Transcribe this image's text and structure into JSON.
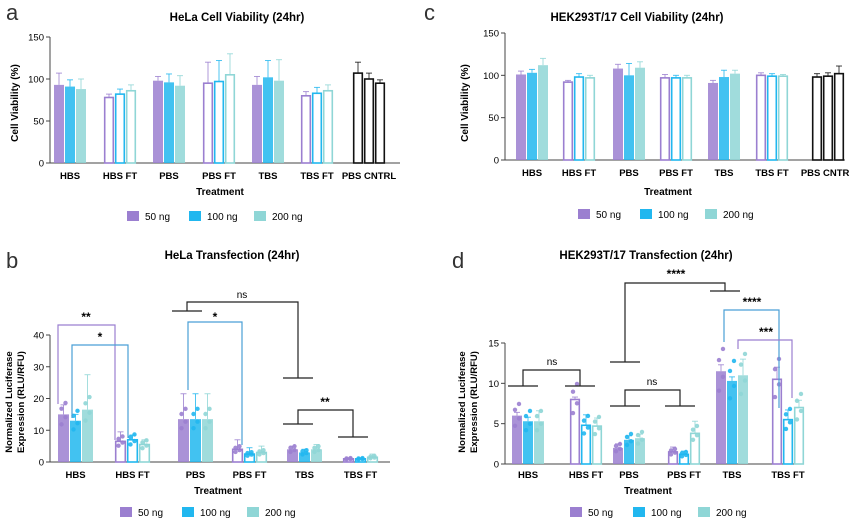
{
  "colors": {
    "s50": "#9b7fd0",
    "s100": "#21b7ef",
    "s200": "#8fd6d6",
    "pbscntrl": "#111111",
    "bracket": "#222222",
    "bracket_purple": "#9b7fd0",
    "bracket_blue": "#4a9fd6"
  },
  "panels": [
    {
      "letter": "a",
      "title": "HeLa Cell Viability (24hr)",
      "ylabel": "Cell Viability (%)",
      "xlabel": "Treatment"
    },
    {
      "letter": "c",
      "title": "HEK293T/17 Cell Viability (24hr)",
      "ylabel": "Cell Viability (%)",
      "xlabel": "Treatment"
    },
    {
      "letter": "b",
      "title": "HeLa Transfection (24hr)",
      "ylabel_line1": "Normalized Luciferase",
      "ylabel_line2": "Expression (RLU/RFU)",
      "xlabel": "Treatment"
    },
    {
      "letter": "d",
      "title": "HEK293T/17 Transfection (24hr)",
      "ylabel_line1": "Normalized Luciferase",
      "ylabel_line2": "Expression (RLU/RFU)",
      "xlabel": "Treatment"
    }
  ],
  "legend": [
    "50 ng",
    "100 ng",
    "200 ng"
  ],
  "chart_data": [
    {
      "type": "bar",
      "panel": "a",
      "title": "HeLa Cell Viability (24hr)",
      "xlabel": "Treatment",
      "ylabel": "Cell Viability (%)",
      "ylim": [
        0,
        150
      ],
      "yticks": [
        0,
        50,
        100,
        150
      ],
      "categories": [
        "HBS",
        "HBS FT",
        "PBS",
        "PBS FT",
        "TBS",
        "TBS FT",
        "PBS CNTRL"
      ],
      "series": [
        {
          "name": "50 ng",
          "values": [
            93,
            78,
            98,
            95,
            93,
            80,
            null
          ]
        },
        {
          "name": "100 ng",
          "values": [
            91,
            82,
            96,
            97,
            102,
            83,
            null
          ]
        },
        {
          "name": "200 ng",
          "values": [
            88,
            86,
            92,
            105,
            98,
            86,
            null
          ]
        }
      ],
      "control": {
        "category": "PBS CNTRL",
        "values": [
          107,
          100,
          95
        ]
      },
      "errors": {
        "50 ng": [
          14,
          4,
          5,
          25,
          10,
          5
        ],
        "100 ng": [
          8,
          6,
          10,
          25,
          20,
          7
        ],
        "200 ng": [
          12,
          7,
          12,
          25,
          25,
          7
        ],
        "control": [
          13,
          7,
          4
        ]
      }
    },
    {
      "type": "bar",
      "panel": "c",
      "title": "HEK293T/17 Cell Viability (24hr)",
      "xlabel": "Treatment",
      "ylabel": "Cell Viability (%)",
      "ylim": [
        0,
        150
      ],
      "yticks": [
        0,
        50,
        100,
        150
      ],
      "categories": [
        "HBS",
        "HBS FT",
        "PBS",
        "PBS FT",
        "TBS",
        "TBS FT",
        "PBS CNTRL"
      ],
      "series": [
        {
          "name": "50 ng",
          "values": [
            101,
            92,
            108,
            97,
            91,
            100,
            null
          ]
        },
        {
          "name": "100 ng",
          "values": [
            103,
            98,
            100,
            97,
            98,
            99,
            null
          ]
        },
        {
          "name": "200 ng",
          "values": [
            112,
            97,
            109,
            97,
            102,
            99,
            null
          ]
        }
      ],
      "control": {
        "category": "PBS CNTRL",
        "values": [
          98,
          99,
          102
        ]
      },
      "errors": {
        "50 ng": [
          4,
          2,
          5,
          4,
          3,
          3
        ],
        "100 ng": [
          4,
          4,
          14,
          3,
          8,
          3
        ],
        "200 ng": [
          8,
          3,
          7,
          3,
          4,
          2
        ],
        "control": [
          4,
          4,
          9
        ]
      }
    },
    {
      "type": "bar",
      "panel": "b",
      "title": "HeLa Transfection (24hr)",
      "xlabel": "Treatment",
      "ylabel": "Normalized Luciferase Expression (RLU/RFU)",
      "ylim": [
        0,
        40
      ],
      "yticks": [
        0,
        10,
        20,
        30,
        40
      ],
      "categories": [
        "HBS",
        "HBS FT",
        "PBS",
        "PBS FT",
        "TBS",
        "TBS FT"
      ],
      "series": [
        {
          "name": "50 ng",
          "values": [
            15,
            6.5,
            13.5,
            4,
            4,
            1
          ]
        },
        {
          "name": "100 ng",
          "values": [
            13,
            7,
            13.5,
            2.5,
            3,
            1
          ]
        },
        {
          "name": "200 ng",
          "values": [
            16.5,
            5.5,
            13.5,
            3,
            4,
            1.5
          ]
        }
      ],
      "errors": {
        "50 ng": [
          3,
          3,
          8,
          3,
          1,
          0.3
        ],
        "100 ng": [
          2,
          1.5,
          8,
          2,
          1,
          0.3
        ],
        "200 ng": [
          11,
          1.5,
          8,
          2,
          1.5,
          1
        ]
      },
      "annotations": [
        "**",
        "*",
        "*",
        "ns",
        "**"
      ]
    },
    {
      "type": "bar",
      "panel": "d",
      "title": "HEK293T/17 Transfection (24hr)",
      "xlabel": "Treatment",
      "ylabel": "Normalized Luciferase Expression (RLU/RFU)",
      "ylim": [
        0,
        15
      ],
      "yticks": [
        0,
        5,
        10,
        15
      ],
      "categories": [
        "HBS",
        "HBS FT",
        "PBS",
        "PBS FT",
        "TBS",
        "TBS FT"
      ],
      "series": [
        {
          "name": "50 ng",
          "values": [
            6,
            8,
            2,
            1.5,
            11.5,
            10.5
          ]
        },
        {
          "name": "100 ng",
          "values": [
            5.3,
            4.8,
            3,
            1.2,
            10.3,
            5.5
          ]
        },
        {
          "name": "200 ng",
          "values": [
            5.3,
            4.7,
            3.2,
            3.8,
            11,
            7
          ]
        }
      ],
      "errors": {
        "50 ng": [
          0.4,
          0.3,
          0.5,
          0.6,
          0.8,
          1.5
        ],
        "100 ng": [
          0.5,
          1.3,
          0.5,
          0.4,
          0.5,
          1.2
        ],
        "200 ng": [
          1.3,
          1.0,
          0.5,
          1.5,
          2.0,
          0.9
        ]
      },
      "annotations": [
        "ns",
        "ns",
        "****",
        "****",
        "***"
      ]
    }
  ]
}
